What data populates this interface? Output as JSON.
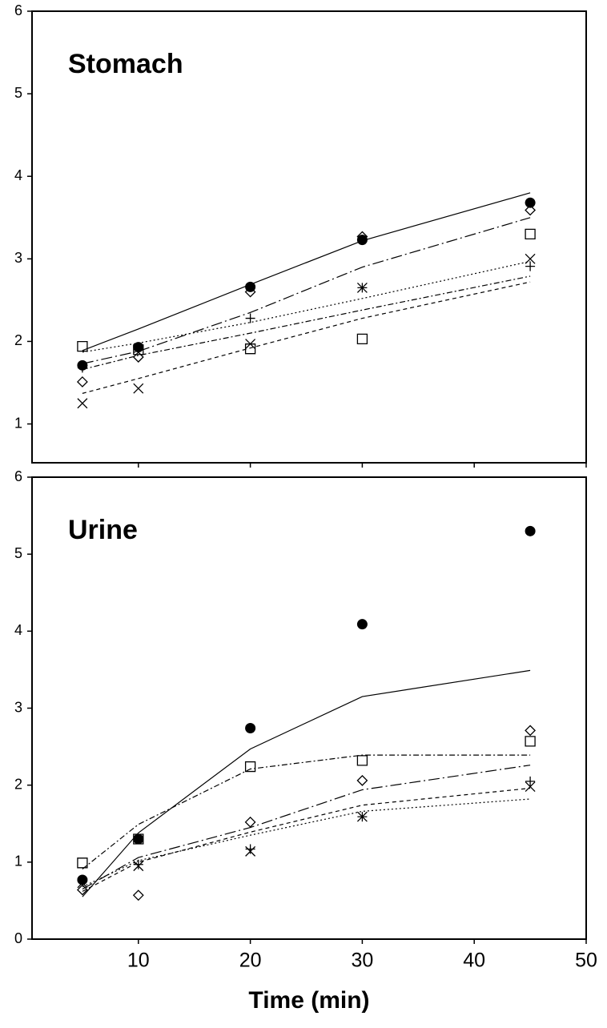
{
  "chart_data": [
    {
      "type": "line",
      "title": "Stomach",
      "x": [
        5,
        10,
        20,
        30,
        45
      ],
      "xlim": [
        0.5,
        50
      ],
      "xticks": [
        10,
        20,
        30,
        40,
        50
      ],
      "xtick_labels": false,
      "ylim": [
        0.53,
        6
      ],
      "yticks": [
        1,
        2,
        3,
        4,
        5,
        6
      ],
      "series": [
        {
          "marker": "circle-filled",
          "dash": "solid",
          "color": "#000000",
          "values": [
            1.71,
            1.93,
            2.66,
            3.23,
            3.68
          ],
          "fit": [
            1.89,
            2.15,
            2.69,
            3.22,
            3.8
          ]
        },
        {
          "marker": "diamond",
          "dash": "long-dash-dot",
          "color": "#000000",
          "values": [
            1.51,
            1.81,
            2.6,
            3.27,
            3.59
          ],
          "fit": [
            1.73,
            1.88,
            2.35,
            2.9,
            3.5
          ]
        },
        {
          "marker": "square",
          "dash": "dash-dot",
          "color": "#000000",
          "values": [
            1.94,
            1.9,
            1.91,
            2.03,
            3.3
          ],
          "fit": [
            1.66,
            1.83,
            2.1,
            2.38,
            2.79
          ]
        },
        {
          "marker": "cross",
          "dash": "dashed",
          "color": "#000000",
          "values": [
            1.25,
            1.43,
            1.97,
            2.65,
            3.0
          ],
          "fit": [
            1.37,
            1.55,
            1.92,
            2.28,
            2.72
          ]
        },
        {
          "marker": "plus",
          "dash": "dotted",
          "color": "#000000",
          "values": [
            1.68,
            1.93,
            2.28,
            2.65,
            2.91
          ],
          "fit": [
            1.87,
            1.98,
            2.23,
            2.52,
            2.97
          ]
        }
      ]
    },
    {
      "type": "line",
      "title": "Urine",
      "xlabel": "Time (min)",
      "x": [
        5,
        10,
        20,
        30,
        45
      ],
      "xlim": [
        0.5,
        50
      ],
      "xticks": [
        10,
        20,
        30,
        40,
        50
      ],
      "xtick_labels": true,
      "ylim": [
        0,
        6
      ],
      "yticks": [
        0,
        1,
        2,
        3,
        4,
        5,
        6
      ],
      "series": [
        {
          "marker": "circle-filled",
          "dash": "solid",
          "color": "#000000",
          "values": [
            0.77,
            1.3,
            2.74,
            4.09,
            5.3
          ],
          "fit": [
            0.55,
            1.38,
            2.47,
            3.15,
            3.49
          ]
        },
        {
          "marker": "diamond",
          "dash": "long-dash-dot",
          "color": "#000000",
          "values": [
            0.64,
            0.57,
            1.52,
            2.06,
            2.71
          ],
          "fit": [
            0.65,
            1.06,
            1.45,
            1.94,
            2.26
          ]
        },
        {
          "marker": "square",
          "dash": "dash-dot",
          "color": "#000000",
          "values": [
            0.99,
            1.3,
            2.24,
            2.32,
            2.57
          ],
          "fit": [
            0.91,
            1.49,
            2.21,
            2.39,
            2.39
          ]
        },
        {
          "marker": "cross",
          "dash": "dashed",
          "color": "#000000",
          "values": [
            0.73,
            0.95,
            1.14,
            1.59,
            1.98
          ],
          "fit": [
            0.62,
            1.0,
            1.39,
            1.74,
            1.96
          ]
        },
        {
          "marker": "plus",
          "dash": "dotted",
          "color": "#000000",
          "values": [
            0.76,
            0.97,
            1.17,
            1.59,
            2.05
          ],
          "fit": [
            0.68,
            1.02,
            1.35,
            1.66,
            1.82
          ]
        }
      ]
    }
  ]
}
